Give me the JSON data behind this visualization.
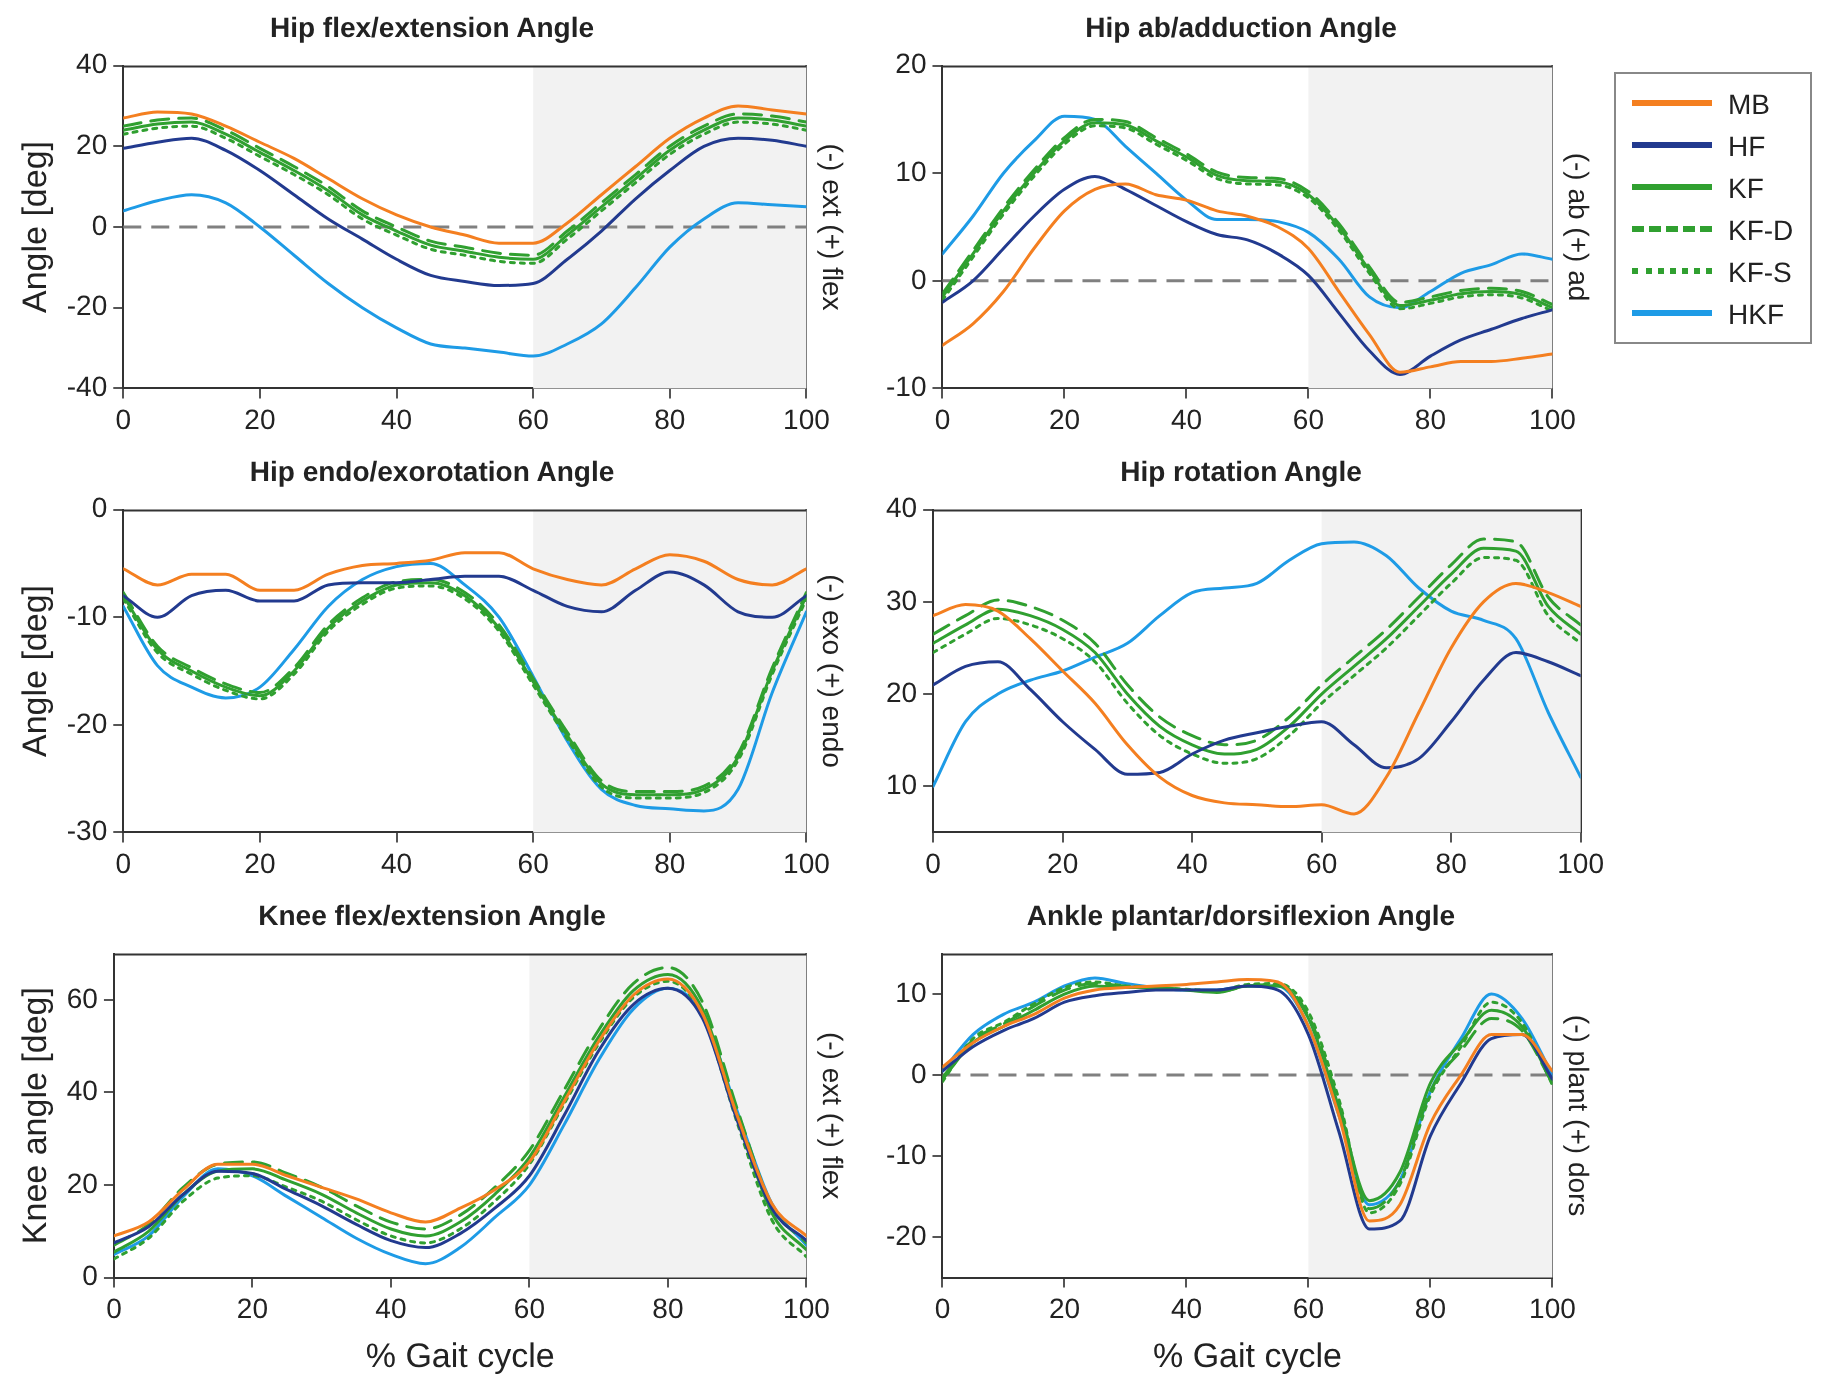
{
  "chart_data": [
    {
      "type": "line",
      "title": "Hip flex/extension Angle",
      "ylabel": "Angle [deg]",
      "y2label": "(-) ext (+) flex",
      "x": [
        0,
        5,
        10,
        15,
        20,
        25,
        30,
        35,
        40,
        45,
        50,
        55,
        60,
        65,
        70,
        75,
        80,
        85,
        90,
        95,
        100
      ],
      "xlim": [
        0,
        100
      ],
      "xticks": [
        0,
        20,
        40,
        60,
        80,
        100
      ],
      "ylim": [
        -40,
        40
      ],
      "yticks": [
        -40,
        -20,
        0,
        20,
        40
      ],
      "bands": [
        {
          "axis": "x",
          "from": 60,
          "to": 100,
          "color": "#f2f2f2"
        }
      ],
      "ref_lines": [
        {
          "axis": "y",
          "value": 0,
          "color": "#808080",
          "line_style": "dashed"
        }
      ],
      "series": [
        {
          "color": "#f47f20",
          "line_style": "solid",
          "values": [
            27,
            28.5,
            28,
            25,
            21,
            17,
            12,
            7,
            3,
            0,
            -2,
            -4,
            -4,
            1,
            8,
            15,
            22,
            27,
            30,
            29,
            28
          ]
        },
        {
          "color": "#223a8f",
          "line_style": "solid",
          "values": [
            19.5,
            21,
            22,
            19,
            14,
            8,
            2,
            -3,
            -8,
            -12,
            -13.5,
            -14.5,
            -14,
            -8,
            -1,
            7,
            14,
            20,
            22,
            21.5,
            20
          ]
        },
        {
          "color": "#30a030",
          "line_style": "solid",
          "values": [
            24,
            25.5,
            26,
            23,
            18.5,
            14,
            9,
            3,
            -1,
            -4.5,
            -6,
            -7.5,
            -8,
            -2,
            5,
            12,
            19,
            24,
            27,
            26.5,
            25
          ]
        },
        {
          "color": "#30a030",
          "line_style": "dashed",
          "values": [
            25,
            26.5,
            27,
            24,
            19.5,
            15,
            10,
            4,
            0,
            -3.5,
            -5,
            -6.5,
            -7,
            -1,
            6,
            13,
            20,
            25,
            28,
            27.5,
            26
          ]
        },
        {
          "color": "#30a030",
          "line_style": "dotted",
          "values": [
            23,
            24.5,
            25,
            22,
            17.5,
            13,
            8,
            2,
            -2,
            -5.5,
            -7,
            -8.5,
            -9,
            -3,
            4,
            11,
            18,
            23,
            26,
            25.5,
            24
          ]
        },
        {
          "color": "#1e9be6",
          "line_style": "solid",
          "values": [
            4,
            6.5,
            8,
            6,
            0,
            -7,
            -14,
            -20,
            -25,
            -29,
            -30,
            -31,
            -32,
            -29,
            -24,
            -15,
            -5,
            2,
            6,
            5.5,
            5
          ]
        }
      ]
    },
    {
      "type": "line",
      "title": "Hip ab/adduction Angle",
      "y2label": "(-) ab (+) ad",
      "legend": "right",
      "x": [
        0,
        5,
        10,
        15,
        20,
        25,
        30,
        35,
        40,
        45,
        50,
        55,
        60,
        65,
        70,
        75,
        80,
        85,
        90,
        95,
        100
      ],
      "xlim": [
        0,
        100
      ],
      "xticks": [
        0,
        20,
        40,
        60,
        80,
        100
      ],
      "ylim": [
        -10,
        20
      ],
      "yticks": [
        -10,
        0,
        10,
        20
      ],
      "bands": [
        {
          "axis": "x",
          "from": 60,
          "to": 100,
          "color": "#f2f2f2"
        }
      ],
      "ref_lines": [
        {
          "axis": "y",
          "value": 0,
          "color": "#808080",
          "line_style": "dashed"
        }
      ],
      "series": [
        {
          "name": "MB",
          "color": "#f47f20",
          "line_style": "solid",
          "values": [
            -6,
            -4,
            -1,
            3,
            6.5,
            8.5,
            9,
            8,
            7.5,
            6.5,
            6,
            5,
            3,
            -1,
            -5,
            -8.5,
            -8,
            -7.5,
            -7.5,
            -7.2,
            -6.8
          ]
        },
        {
          "name": "HF",
          "color": "#223a8f",
          "line_style": "solid",
          "values": [
            -2,
            0,
            3,
            6,
            8.5,
            9.7,
            8.5,
            7,
            5.5,
            4.3,
            3.8,
            2.5,
            0.5,
            -3,
            -6.5,
            -8.7,
            -7,
            -5.5,
            -4.5,
            -3.5,
            -2.7
          ]
        },
        {
          "name": "KF",
          "color": "#30a030",
          "line_style": "solid",
          "values": [
            -1.5,
            2.5,
            6.5,
            10,
            13,
            14.7,
            14.5,
            13,
            11.5,
            9.8,
            9.3,
            9.2,
            8,
            5,
            1,
            -2.3,
            -1.8,
            -1.2,
            -1,
            -1.3,
            -2.5
          ]
        },
        {
          "name": "KF-D",
          "color": "#30a030",
          "line_style": "dashed",
          "values": [
            -1.2,
            2.8,
            6.8,
            10.3,
            13.3,
            15,
            14.8,
            13.3,
            11.8,
            10.1,
            9.6,
            9.5,
            8.3,
            5.3,
            1.3,
            -2,
            -1.5,
            -0.9,
            -0.7,
            -1,
            -2.2
          ]
        },
        {
          "name": "KF-S",
          "color": "#30a030",
          "line_style": "dotted",
          "values": [
            -1.8,
            2.2,
            6.2,
            9.7,
            12.7,
            14.4,
            14.2,
            12.7,
            11.2,
            9.5,
            9,
            8.9,
            7.7,
            4.7,
            0.7,
            -2.6,
            -2.1,
            -1.5,
            -1.3,
            -1.6,
            -2.8
          ]
        },
        {
          "name": "HKF",
          "color": "#1e9be6",
          "line_style": "solid",
          "values": [
            2.5,
            6,
            10,
            13,
            15.3,
            15,
            12.5,
            10,
            7.5,
            5.7,
            5.7,
            5.5,
            4.5,
            2,
            -1.5,
            -2.5,
            -1,
            0.7,
            1.5,
            2.5,
            2
          ]
        }
      ]
    },
    {
      "type": "line",
      "title": "Hip endo/exorotation Angle",
      "ylabel": "Angle [deg]",
      "y2label": "(-) exo (+) endo",
      "x": [
        0,
        5,
        10,
        15,
        20,
        25,
        30,
        35,
        40,
        45,
        50,
        55,
        60,
        65,
        70,
        75,
        80,
        85,
        90,
        95,
        100
      ],
      "xlim": [
        0,
        100
      ],
      "xticks": [
        0,
        20,
        40,
        60,
        80,
        100
      ],
      "ylim": [
        -30,
        0
      ],
      "yticks": [
        -30,
        -20,
        -10,
        0
      ],
      "bands": [
        {
          "axis": "x",
          "from": 60,
          "to": 100,
          "color": "#f2f2f2"
        }
      ],
      "series": [
        {
          "color": "#f47f20",
          "line_style": "solid",
          "values": [
            -5.5,
            -7,
            -6,
            -6,
            -7.5,
            -7.5,
            -6,
            -5.2,
            -5,
            -4.7,
            -4,
            -4,
            -5.5,
            -6.5,
            -7,
            -5.5,
            -4.2,
            -4.8,
            -6.5,
            -7,
            -5.5
          ]
        },
        {
          "color": "#223a8f",
          "line_style": "solid",
          "values": [
            -8,
            -10,
            -8,
            -7.5,
            -8.5,
            -8.5,
            -7,
            -6.8,
            -6.8,
            -6.5,
            -6.2,
            -6.2,
            -7.5,
            -9,
            -9.5,
            -7.5,
            -5.8,
            -7,
            -9.5,
            -10,
            -8
          ]
        },
        {
          "color": "#30a030",
          "line_style": "solid",
          "values": [
            -8,
            -13,
            -15,
            -16.5,
            -17.3,
            -15,
            -11,
            -8.5,
            -7,
            -6.8,
            -8,
            -11,
            -16,
            -21,
            -25.5,
            -26.5,
            -26.5,
            -26,
            -23,
            -15,
            -8
          ]
        },
        {
          "color": "#30a030",
          "line_style": "dashed",
          "values": [
            -7.7,
            -12.7,
            -14.7,
            -16.2,
            -17,
            -14.7,
            -10.7,
            -8.2,
            -6.7,
            -6.5,
            -7.7,
            -10.7,
            -15.7,
            -20.7,
            -25.2,
            -26.2,
            -26.2,
            -25.7,
            -22.7,
            -14.7,
            -7.7
          ]
        },
        {
          "color": "#30a030",
          "line_style": "dotted",
          "values": [
            -8.3,
            -13.3,
            -15.3,
            -16.8,
            -17.6,
            -15.3,
            -11.3,
            -8.8,
            -7.3,
            -7.1,
            -8.3,
            -11.3,
            -16.3,
            -21.3,
            -25.8,
            -26.8,
            -26.8,
            -26.3,
            -23.3,
            -15.3,
            -8.3
          ]
        },
        {
          "color": "#1e9be6",
          "line_style": "solid",
          "values": [
            -9,
            -14.5,
            -16.5,
            -17.5,
            -16.5,
            -13,
            -9,
            -6.5,
            -5.3,
            -5,
            -7,
            -10,
            -15.5,
            -21.5,
            -26,
            -27.5,
            -27.8,
            -28,
            -26,
            -17,
            -9.5
          ]
        }
      ]
    },
    {
      "type": "line",
      "title": "Hip rotation Angle",
      "x": [
        0,
        5,
        10,
        15,
        20,
        25,
        30,
        35,
        40,
        45,
        50,
        55,
        60,
        65,
        70,
        75,
        80,
        85,
        90,
        95,
        100
      ],
      "xlim": [
        0,
        100
      ],
      "xticks": [
        0,
        20,
        40,
        60,
        80,
        100
      ],
      "ylim": [
        5,
        40
      ],
      "yticks": [
        10,
        20,
        30,
        40
      ],
      "bands": [
        {
          "axis": "x",
          "from": 60,
          "to": 100,
          "color": "#f2f2f2"
        }
      ],
      "series": [
        {
          "color": "#f47f20",
          "line_style": "solid",
          "values": [
            28.5,
            29.7,
            29,
            26,
            22.5,
            19,
            14.5,
            11,
            9,
            8.2,
            8,
            7.8,
            8,
            7,
            11,
            18,
            25,
            30,
            32,
            31,
            29.5
          ]
        },
        {
          "color": "#223a8f",
          "line_style": "solid",
          "values": [
            21,
            23,
            23.5,
            20.5,
            17,
            14,
            11.3,
            11.5,
            13.5,
            15,
            15.8,
            16.5,
            17,
            14.5,
            12,
            13,
            17,
            21.5,
            24.5,
            23.5,
            22
          ]
        },
        {
          "color": "#30a030",
          "line_style": "solid",
          "values": [
            25.5,
            27.5,
            29.2,
            28.5,
            27,
            24.5,
            20,
            16.5,
            14.5,
            13.5,
            14,
            16.5,
            20,
            23,
            26,
            29.5,
            33,
            35.8,
            35.5,
            29.5,
            26.5
          ]
        },
        {
          "color": "#30a030",
          "line_style": "dashed",
          "values": [
            26.5,
            28.5,
            30.2,
            29.5,
            28,
            25.5,
            21,
            17.5,
            15.5,
            14.5,
            15,
            17.5,
            21,
            24,
            27,
            30.5,
            34,
            36.8,
            36.5,
            30.5,
            27.5
          ]
        },
        {
          "color": "#30a030",
          "line_style": "dotted",
          "values": [
            24.5,
            26.5,
            28.2,
            27.5,
            26,
            23.5,
            19,
            15.5,
            13.5,
            12.5,
            13,
            15.5,
            19,
            22,
            25,
            28.5,
            32,
            34.8,
            34.5,
            28.5,
            25.5
          ]
        },
        {
          "color": "#1e9be6",
          "line_style": "solid",
          "values": [
            10,
            17,
            20,
            21.5,
            22.5,
            24,
            25.5,
            28.5,
            31,
            31.5,
            32,
            34.5,
            36.3,
            36.5,
            35,
            31.5,
            29,
            28,
            26,
            18,
            11
          ]
        }
      ]
    },
    {
      "type": "line",
      "title": "Knee flex/extension Angle",
      "xlabel": "% Gait cycle",
      "ylabel": "Knee angle [deg]",
      "y2label": "(-) ext (+) flex",
      "x": [
        0,
        5,
        10,
        15,
        20,
        25,
        30,
        35,
        40,
        45,
        50,
        55,
        60,
        65,
        70,
        75,
        80,
        85,
        90,
        95,
        100
      ],
      "xlim": [
        0,
        100
      ],
      "xticks": [
        0,
        20,
        40,
        60,
        80,
        100
      ],
      "ylim": [
        0,
        70
      ],
      "yticks": [
        0,
        20,
        40,
        60
      ],
      "bands": [
        {
          "axis": "x",
          "from": 60,
          "to": 100,
          "color": "#f2f2f2"
        }
      ],
      "series": [
        {
          "color": "#f47f20",
          "line_style": "solid",
          "values": [
            9,
            12,
            19,
            24.5,
            24.5,
            22,
            19.5,
            17,
            14,
            12,
            15,
            19,
            25,
            38,
            51,
            61,
            64.5,
            57,
            35,
            16,
            9
          ]
        },
        {
          "color": "#223a8f",
          "line_style": "solid",
          "values": [
            7.5,
            11,
            18,
            23,
            22.5,
            19,
            15.5,
            11.5,
            8,
            6.5,
            9.5,
            15,
            22,
            35,
            49,
            59,
            62.5,
            56,
            34,
            15,
            8
          ]
        },
        {
          "color": "#30a030",
          "line_style": "solid",
          "values": [
            5.5,
            10,
            18,
            23,
            23.5,
            21,
            18,
            14,
            10.5,
            9,
            12,
            18,
            26,
            39,
            52,
            62,
            65.5,
            58,
            35,
            14,
            6
          ]
        },
        {
          "color": "#30a030",
          "line_style": "dashed",
          "values": [
            7,
            11.5,
            19.5,
            24.5,
            25,
            22.5,
            19.5,
            15.5,
            12,
            10.5,
            13.5,
            19.5,
            27.5,
            40.5,
            53.5,
            63.5,
            67,
            59.5,
            36.5,
            15.5,
            7.5
          ]
        },
        {
          "color": "#30a030",
          "line_style": "dotted",
          "values": [
            4,
            8.5,
            16.5,
            21.5,
            22,
            19.5,
            16.5,
            12.5,
            9,
            7.5,
            10.5,
            16.5,
            24.5,
            37.5,
            50.5,
            60.5,
            64,
            56.5,
            33.5,
            12.5,
            4.5
          ]
        },
        {
          "color": "#1e9be6",
          "line_style": "solid",
          "values": [
            5,
            9,
            17.5,
            23.5,
            22,
            17.5,
            13,
            8.5,
            5,
            3,
            6.5,
            13,
            20,
            33,
            47,
            58,
            62.5,
            57,
            36,
            16,
            7
          ]
        }
      ]
    },
    {
      "type": "line",
      "title": "Ankle plantar/dorsiflexion Angle",
      "xlabel": "% Gait cycle",
      "y2label": "(-) plant (+) dors",
      "x": [
        0,
        5,
        10,
        15,
        20,
        25,
        30,
        35,
        40,
        45,
        50,
        55,
        60,
        65,
        70,
        75,
        80,
        85,
        90,
        95,
        100
      ],
      "xlim": [
        0,
        100
      ],
      "xticks": [
        0,
        20,
        40,
        60,
        80,
        100
      ],
      "ylim": [
        -25,
        15
      ],
      "yticks": [
        -20,
        -10,
        0,
        10
      ],
      "bands": [
        {
          "axis": "x",
          "from": 60,
          "to": 100,
          "color": "#f2f2f2"
        }
      ],
      "ref_lines": [
        {
          "axis": "y",
          "value": 0,
          "color": "#808080",
          "line_style": "dashed"
        }
      ],
      "series": [
        {
          "color": "#f47f20",
          "line_style": "solid",
          "values": [
            1,
            4,
            6,
            7.5,
            9.5,
            10.5,
            10.8,
            11,
            11.2,
            11.5,
            11.8,
            11.5,
            6,
            -5,
            -18,
            -16,
            -6,
            0,
            5,
            5,
            0.5
          ]
        },
        {
          "color": "#223a8f",
          "line_style": "solid",
          "values": [
            0.5,
            3.5,
            5.5,
            7,
            9,
            9.8,
            10.2,
            10.5,
            10.5,
            10.5,
            11,
            10.5,
            5,
            -7,
            -19,
            -18,
            -7.5,
            -1,
            4.5,
            5,
            -0.5
          ]
        },
        {
          "color": "#30a030",
          "line_style": "solid",
          "values": [
            -0.5,
            4,
            6,
            8,
            10,
            11,
            10.8,
            10.8,
            10.5,
            10.2,
            11,
            11,
            7,
            -4,
            -15.5,
            -12,
            -1,
            4,
            8,
            6,
            -1
          ]
        },
        {
          "color": "#30a030",
          "line_style": "dashed",
          "values": [
            -0.3,
            4.3,
            6.3,
            8.5,
            10.5,
            11.3,
            11,
            10.8,
            10.5,
            10.3,
            11,
            11.2,
            7.3,
            -3.5,
            -16.5,
            -13,
            -2,
            3,
            7,
            5.5,
            -1
          ]
        },
        {
          "color": "#30a030",
          "line_style": "dotted",
          "values": [
            -0.8,
            4.5,
            6.5,
            8.8,
            10.8,
            11.5,
            11,
            10.8,
            10.6,
            10.4,
            11.2,
            11.3,
            7.8,
            -3,
            -17,
            -13.5,
            -2.5,
            3.5,
            9,
            6.5,
            -1.2
          ]
        },
        {
          "color": "#1e9be6",
          "line_style": "solid",
          "values": [
            0.5,
            5,
            7.5,
            9,
            11,
            12,
            11.3,
            10.8,
            10.5,
            10.5,
            11,
            11,
            6,
            -5,
            -16,
            -13,
            -2,
            4.5,
            10,
            7,
            0
          ]
        }
      ]
    }
  ]
}
